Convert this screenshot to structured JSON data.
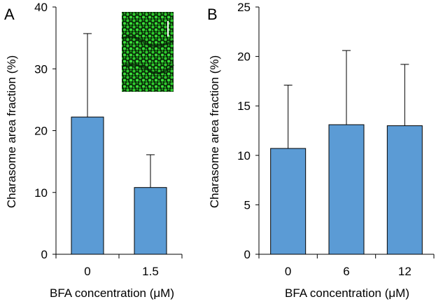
{
  "chart_data": [
    {
      "type": "bar",
      "panel_label": "A",
      "categories": [
        "0",
        "1.5"
      ],
      "series": [
        {
          "values": [
            22.2,
            10.8
          ],
          "error_plus": [
            13.5,
            5.3
          ]
        }
      ],
      "xlabel": "BFA concentration (μM)",
      "ylabel": "Charasome area fraction (%)",
      "ylim": [
        0,
        40
      ],
      "yticks": [
        "0",
        "10",
        "20",
        "30",
        "40"
      ],
      "bar_color": "#5b9bd5",
      "grid": false,
      "inset": "fluorescence micrograph (green)"
    },
    {
      "type": "bar",
      "panel_label": "B",
      "categories": [
        "0",
        "6",
        "12"
      ],
      "series": [
        {
          "values": [
            10.7,
            13.1,
            13.0
          ],
          "error_plus": [
            6.4,
            7.5,
            6.2
          ]
        }
      ],
      "xlabel": "BFA concentration (μM)",
      "ylabel": "Charasome area fraction (%)",
      "ylim": [
        0,
        25
      ],
      "yticks": [
        "0",
        "5",
        "10",
        "15",
        "20",
        "25"
      ],
      "bar_color": "#5b9bd5",
      "grid": false
    }
  ]
}
